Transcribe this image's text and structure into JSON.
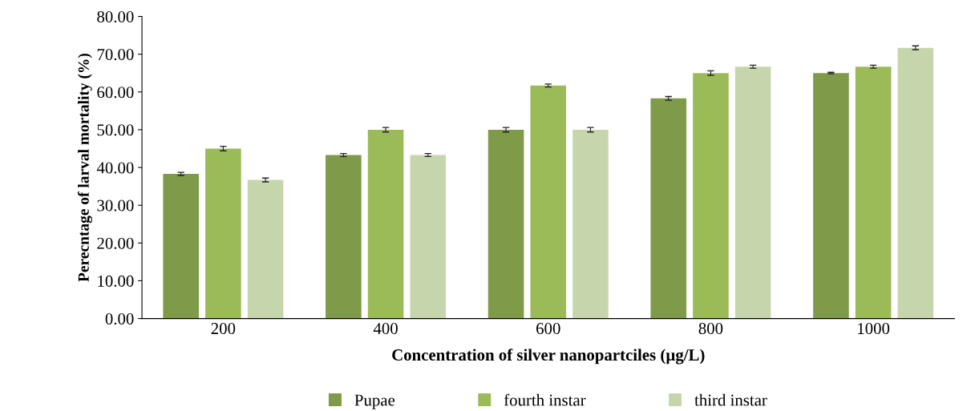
{
  "chart_data": {
    "type": "bar",
    "xlabel": "Concentration of silver nanopartciles (µg/L)",
    "ylabel": "Perecntage of larval mortality (%)",
    "categories": [
      "200",
      "400",
      "600",
      "800",
      "1000"
    ],
    "series": [
      {
        "name": "Pupae",
        "color": "#7f9a48",
        "values": [
          38.3,
          43.3,
          50.0,
          58.3,
          65.0
        ],
        "errors": [
          0.4,
          0.4,
          0.6,
          0.5,
          0.2
        ]
      },
      {
        "name": "fourth instar",
        "color": "#9bbb59",
        "values": [
          45.0,
          50.0,
          61.7,
          65.0,
          66.7
        ],
        "errors": [
          0.6,
          0.6,
          0.4,
          0.6,
          0.4
        ]
      },
      {
        "name": "third instar",
        "color": "#c6d6ac",
        "values": [
          36.7,
          43.3,
          50.0,
          66.7,
          71.7
        ],
        "errors": [
          0.5,
          0.4,
          0.6,
          0.4,
          0.5
        ]
      }
    ],
    "ylim": [
      0,
      80
    ],
    "yticks": [
      {
        "value": 0,
        "label": "0.00"
      },
      {
        "value": 10,
        "label": "10.00"
      },
      {
        "value": 20,
        "label": "20.00"
      },
      {
        "value": 30,
        "label": "30.00"
      },
      {
        "value": 40,
        "label": "40.00"
      },
      {
        "value": 50,
        "label": "50.00"
      },
      {
        "value": 60,
        "label": "60.00"
      },
      {
        "value": 70,
        "label": "70.00"
      },
      {
        "value": 80,
        "label": "80.00"
      }
    ],
    "grid": false,
    "legend": "bottom"
  }
}
